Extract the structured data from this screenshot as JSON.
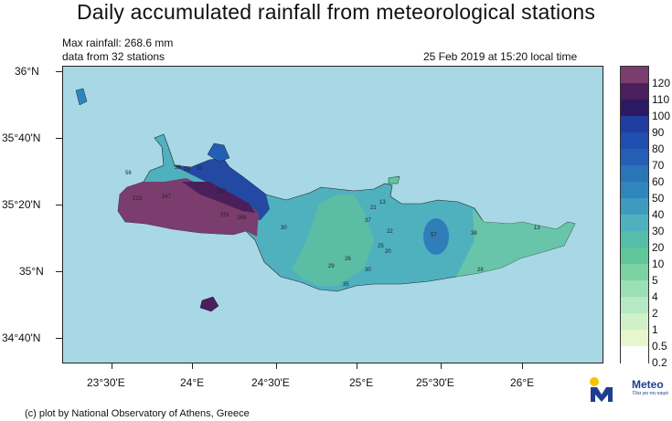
{
  "title": "Daily accumulated rainfall from meteorological stations",
  "info": {
    "max_rainfall": "Max rainfall: 268.6 mm",
    "stations": "data from 32 stations",
    "timestamp": "25 Feb 2019 at 15:20 local time"
  },
  "footer": "(c) plot by National Observatory of Athens, Greece",
  "logo": {
    "name": "Meteo",
    "tagline": "Όλα για τον καιρό"
  },
  "lat_labels": [
    "36°N",
    "35°40'N",
    "35°20'N",
    "35°N",
    "34°40'N"
  ],
  "lon_labels": [
    "23°30'E",
    "24°E",
    "24°30'E",
    "25°E",
    "25°30'E",
    "26°E"
  ],
  "colorbar": {
    "labels": [
      "120",
      "110",
      "100",
      "90",
      "80",
      "70",
      "60",
      "50",
      "40",
      "30",
      "20",
      "10",
      "5",
      "4",
      "2",
      "1",
      "0.5",
      "0.2"
    ],
    "colors": [
      "#7a3d6e",
      "#4a1f5c",
      "#2b1a63",
      "#1f3ea0",
      "#1f4fb0",
      "#245fb5",
      "#2a75b8",
      "#2f86be",
      "#3f9ac0",
      "#4fb1be",
      "#55bda9",
      "#5fc79a",
      "#7bd3a4",
      "#9adfb6",
      "#b5e8c4",
      "#d0f0c8",
      "#e8f6cc",
      "#ffffff"
    ]
  },
  "stations": [
    {
      "value": "123"
    },
    {
      "value": "247"
    },
    {
      "value": "251"
    },
    {
      "value": "269"
    },
    {
      "value": "130"
    },
    {
      "value": "38"
    },
    {
      "value": "25"
    },
    {
      "value": "31"
    },
    {
      "value": "56"
    },
    {
      "value": "30"
    },
    {
      "value": "21"
    },
    {
      "value": "13"
    },
    {
      "value": "37"
    },
    {
      "value": "22"
    },
    {
      "value": "25"
    },
    {
      "value": "20"
    },
    {
      "value": "57"
    },
    {
      "value": "38"
    },
    {
      "value": "13"
    },
    {
      "value": "28"
    },
    {
      "value": "26"
    },
    {
      "value": "30"
    },
    {
      "value": "29"
    },
    {
      "value": "35"
    }
  ],
  "colors": {
    "sea": "#a8d8e6",
    "land_base": "#4fb1be",
    "land_light": "#5fc79a"
  }
}
